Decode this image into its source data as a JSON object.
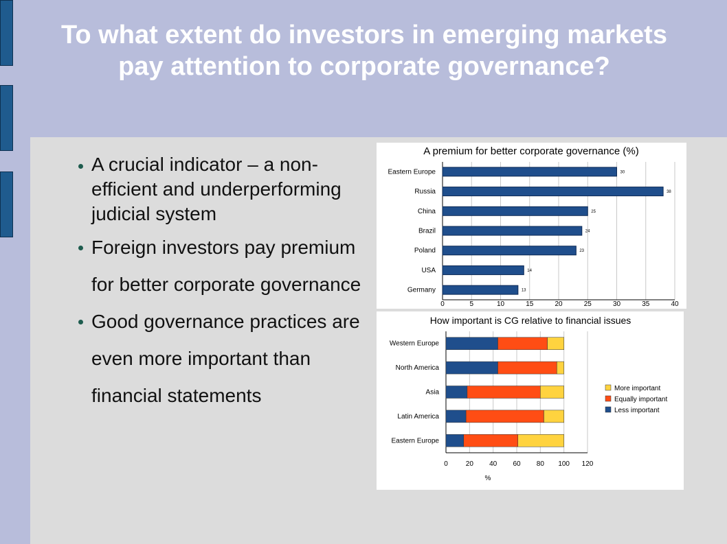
{
  "slide": {
    "title": "To what extent do investors in emerging markets pay attention to corporate governance?",
    "bullets": [
      "A crucial indicator – a non-efficient and underperforming judicial system",
      "Foreign investors pay premium for better corporate governance",
      "Good governance practices are even more important than financial statements"
    ]
  },
  "colors": {
    "header_bg": "#b8bddb",
    "content_bg": "#dcdcdc",
    "bar_blue": "#1f4e8c",
    "more_important": "#ffd33f",
    "equally_important": "#ff4d14",
    "less_important": "#1f4e8c"
  },
  "chart_data": [
    {
      "type": "bar",
      "orientation": "horizontal",
      "title": "A premium for better corporate governance (%)",
      "categories": [
        "Eastern Europe",
        "Russia",
        "China",
        "Brazil",
        "Poland",
        "USA",
        "Germany"
      ],
      "values": [
        30,
        38,
        25,
        24,
        23,
        14,
        13
      ],
      "xlim": [
        0,
        40
      ],
      "xticks": [
        0,
        5,
        10,
        15,
        20,
        25,
        30,
        35,
        40
      ],
      "grid": true,
      "data_labels": true
    },
    {
      "type": "bar",
      "orientation": "horizontal",
      "stacked": true,
      "title": "How important is CG relative to financial issues",
      "categories": [
        "Western Europe",
        "North America",
        "Asia",
        "Latin America",
        "Eastern Europe"
      ],
      "series": [
        {
          "name": "Less important",
          "values": [
            44,
            44,
            18,
            17,
            15
          ]
        },
        {
          "name": "Equally important",
          "values": [
            42,
            50,
            62,
            66,
            46
          ]
        },
        {
          "name": "More important",
          "values": [
            14,
            6,
            20,
            17,
            39
          ]
        }
      ],
      "legend_order": [
        "More important",
        "Equally important",
        "Less important"
      ],
      "xlabel": "%",
      "xlim": [
        0,
        120
      ],
      "xticks": [
        0,
        20,
        40,
        60,
        80,
        100,
        120
      ],
      "grid": true,
      "legend": "right"
    }
  ]
}
